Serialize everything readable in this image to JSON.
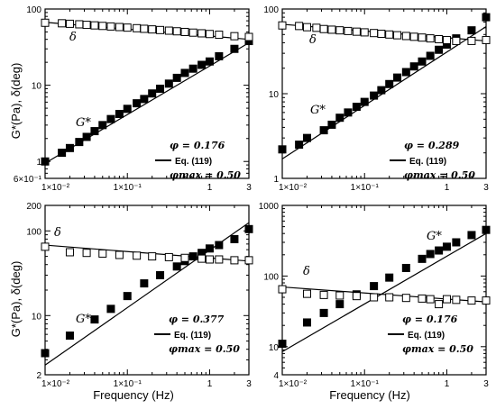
{
  "x_axis_label": "Frequency (Hz)",
  "y_axis_label": "G*(Pa), δ(deg)",
  "chart_data": [
    {
      "type": "scatter",
      "xscale": "log",
      "yscale": "log",
      "xlim": [
        0.01,
        3
      ],
      "ylim": [
        0.6,
        100
      ],
      "x_tick_labels": [
        "1×10⁻²",
        "1×10⁻¹",
        "1",
        "3"
      ],
      "x_tick_values": [
        0.01,
        0.1,
        1,
        3
      ],
      "y_tick_labels": [
        "6×10⁻¹",
        "1",
        "10",
        "100"
      ],
      "y_tick_values": [
        0.6,
        1,
        10,
        100
      ],
      "series_labels": {
        "g": "G*",
        "d": "δ"
      },
      "annotation": {
        "phi": "φ = 0.176",
        "eq": "Eq. (119)",
        "phimax": "φmax = 0.50"
      },
      "series": [
        {
          "key": "g",
          "marker": "filled-square",
          "x": [
            0.01,
            0.016,
            0.02,
            0.026,
            0.032,
            0.04,
            0.05,
            0.063,
            0.08,
            0.1,
            0.13,
            0.16,
            0.2,
            0.25,
            0.32,
            0.4,
            0.5,
            0.63,
            0.8,
            1.0,
            1.3,
            2.0,
            3.0
          ],
          "y": [
            1.0,
            1.3,
            1.5,
            1.8,
            2.1,
            2.5,
            3.0,
            3.6,
            4.2,
            4.9,
            5.8,
            6.6,
            7.8,
            9.0,
            10.5,
            12.5,
            14.5,
            16.5,
            18.5,
            20.5,
            24.0,
            30.0,
            38.0
          ]
        },
        {
          "key": "d",
          "marker": "open-square",
          "x": [
            0.01,
            0.016,
            0.02,
            0.026,
            0.032,
            0.04,
            0.05,
            0.063,
            0.08,
            0.1,
            0.13,
            0.16,
            0.2,
            0.25,
            0.32,
            0.4,
            0.5,
            0.63,
            0.8,
            1.0,
            1.3,
            2.0,
            3.0
          ],
          "y": [
            66,
            65,
            64,
            63,
            62,
            61,
            60,
            59,
            58,
            57,
            56,
            55,
            54,
            53,
            52,
            51,
            50,
            49,
            48,
            47,
            46,
            44,
            43
          ]
        }
      ],
      "fit_lines": [
        {
          "key": "g",
          "x": [
            0.01,
            3.0
          ],
          "y": [
            0.95,
            36
          ]
        },
        {
          "key": "d",
          "x": [
            0.01,
            3.0
          ],
          "y": [
            67,
            40
          ]
        }
      ]
    },
    {
      "type": "scatter",
      "xscale": "log",
      "yscale": "log",
      "xlim": [
        0.01,
        3
      ],
      "ylim": [
        1,
        100
      ],
      "x_tick_labels": [
        "1×10⁻²",
        "1×10⁻¹",
        "1",
        "3"
      ],
      "x_tick_values": [
        0.01,
        0.1,
        1,
        3
      ],
      "y_tick_labels": [
        "1",
        "10",
        "100"
      ],
      "y_tick_values": [
        1,
        10,
        100
      ],
      "series_labels": {
        "g": "G*",
        "d": "δ"
      },
      "annotation": {
        "phi": "φ = 0.289",
        "eq": "Eq. (119)",
        "phimax": "φmax = 0.50"
      },
      "series": [
        {
          "key": "g",
          "marker": "filled-square",
          "x": [
            0.01,
            0.016,
            0.02,
            0.032,
            0.04,
            0.05,
            0.063,
            0.08,
            0.1,
            0.13,
            0.16,
            0.2,
            0.25,
            0.32,
            0.4,
            0.5,
            0.63,
            0.8,
            1.0,
            1.3,
            2.0,
            3.0
          ],
          "y": [
            2.2,
            2.5,
            3.0,
            3.7,
            4.3,
            5.2,
            6.0,
            7.0,
            8.0,
            9.5,
            11.0,
            13.0,
            15.5,
            18.0,
            21.0,
            24.0,
            28.0,
            33.0,
            38.0,
            45.0,
            56.0,
            80.0
          ]
        },
        {
          "key": "d",
          "marker": "open-square",
          "x": [
            0.01,
            0.016,
            0.02,
            0.026,
            0.032,
            0.04,
            0.05,
            0.063,
            0.08,
            0.1,
            0.13,
            0.16,
            0.2,
            0.25,
            0.32,
            0.4,
            0.5,
            0.63,
            0.8,
            1.0,
            1.3,
            2.0,
            3.0
          ],
          "y": [
            64,
            63,
            61,
            60,
            58,
            57,
            56,
            55,
            54,
            53,
            52,
            51,
            50,
            49,
            48,
            47,
            46,
            45,
            44,
            43,
            42,
            42,
            43
          ]
        }
      ],
      "fit_lines": [
        {
          "key": "g",
          "x": [
            0.01,
            3.0
          ],
          "y": [
            1.7,
            62
          ]
        },
        {
          "key": "d",
          "x": [
            0.01,
            3.0
          ],
          "y": [
            66,
            42
          ]
        }
      ]
    },
    {
      "type": "scatter",
      "xscale": "log",
      "yscale": "log",
      "xlim": [
        0.01,
        3
      ],
      "ylim": [
        2,
        200
      ],
      "x_tick_labels": [
        "1×10⁻²",
        "1×10⁻¹",
        "1",
        "3"
      ],
      "x_tick_values": [
        0.01,
        0.1,
        1,
        3
      ],
      "y_tick_labels": [
        "2",
        "10",
        "100",
        "200"
      ],
      "y_tick_values": [
        2,
        10,
        100,
        200
      ],
      "series_labels": {
        "g": "G*",
        "d": "δ"
      },
      "annotation": {
        "phi": "φ = 0.377",
        "eq": "Eq. (119)",
        "phimax": "φmax = 0.50"
      },
      "series": [
        {
          "key": "g",
          "marker": "filled-square",
          "x": [
            0.01,
            0.02,
            0.04,
            0.063,
            0.1,
            0.16,
            0.25,
            0.4,
            0.5,
            0.63,
            0.8,
            1.0,
            1.3,
            2.0,
            3.0
          ],
          "y": [
            3.6,
            5.8,
            9.0,
            12.0,
            17.0,
            24.0,
            30.0,
            38.0,
            44.0,
            50.0,
            55.0,
            62.0,
            68.0,
            80.0,
            105.0
          ]
        },
        {
          "key": "d",
          "marker": "open-square",
          "x": [
            0.01,
            0.02,
            0.032,
            0.05,
            0.08,
            0.13,
            0.2,
            0.32,
            0.5,
            0.8,
            1.0,
            1.3,
            2.0,
            3.0
          ],
          "y": [
            65,
            56,
            55,
            54,
            52,
            51,
            50,
            49,
            48,
            47,
            46,
            46,
            45,
            45
          ]
        }
      ],
      "fit_lines": [
        {
          "key": "g",
          "x": [
            0.01,
            3.0
          ],
          "y": [
            2.6,
            125
          ]
        },
        {
          "key": "d",
          "x": [
            0.01,
            3.0
          ],
          "y": [
            68,
            44
          ]
        }
      ]
    },
    {
      "type": "scatter",
      "xscale": "log",
      "yscale": "log",
      "xlim": [
        0.01,
        3
      ],
      "ylim": [
        4,
        1000
      ],
      "x_tick_labels": [
        "1×10⁻²",
        "1×10⁻¹",
        "1",
        "3"
      ],
      "x_tick_values": [
        0.01,
        0.1,
        1,
        3
      ],
      "y_tick_labels": [
        "4",
        "10",
        "100",
        "1000"
      ],
      "y_tick_values": [
        4,
        10,
        100,
        1000
      ],
      "series_labels": {
        "g": "G*",
        "d": "δ"
      },
      "annotation": {
        "phi": "φ = 0.176",
        "eq": "Eq. (119)",
        "phimax": "φmax = 0.50"
      },
      "series": [
        {
          "key": "g",
          "marker": "filled-square",
          "x": [
            0.01,
            0.02,
            0.032,
            0.05,
            0.08,
            0.13,
            0.2,
            0.32,
            0.5,
            0.63,
            0.8,
            1.0,
            1.3,
            2.0,
            3.0
          ],
          "y": [
            11,
            22,
            30,
            40,
            55,
            72,
            95,
            130,
            175,
            205,
            230,
            260,
            300,
            380,
            450
          ]
        },
        {
          "key": "d",
          "marker": "open-square",
          "x": [
            0.01,
            0.02,
            0.032,
            0.05,
            0.08,
            0.13,
            0.2,
            0.32,
            0.5,
            0.63,
            0.8,
            1.0,
            1.3,
            2.0,
            3.0
          ],
          "y": [
            65,
            56,
            54,
            53,
            52,
            50,
            50,
            49,
            48,
            47,
            40,
            47,
            46,
            45,
            45
          ]
        }
      ],
      "fit_lines": [
        {
          "key": "g",
          "x": [
            0.01,
            3.0
          ],
          "y": [
            8.5,
            400
          ]
        },
        {
          "key": "d",
          "x": [
            0.01,
            3.0
          ],
          "y": [
            70,
            43
          ]
        }
      ]
    }
  ]
}
